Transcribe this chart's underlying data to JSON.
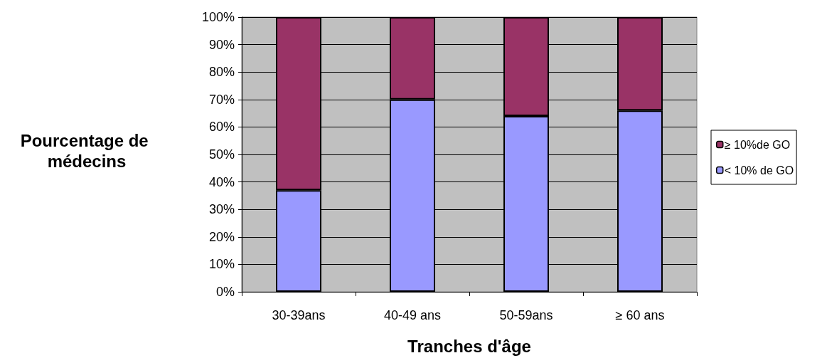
{
  "chart_data": {
    "type": "bar",
    "stacked": true,
    "categories": [
      "30-39ans",
      "40-49 ans",
      "50-59ans",
      "≥ 60 ans"
    ],
    "series": [
      {
        "name": "< 10% de GO",
        "color": "#9999ff",
        "values": [
          37,
          70,
          64,
          66
        ]
      },
      {
        "name": "≥ 10%de GO",
        "color": "#993366",
        "values": [
          63,
          30,
          36,
          34
        ]
      }
    ],
    "xlabel": "Tranches d'âge",
    "ylabel": "Pourcentage de médecins",
    "ylim": [
      0,
      100
    ],
    "yticks": [
      {
        "value": 0,
        "label": "0%"
      },
      {
        "value": 10,
        "label": "10%"
      },
      {
        "value": 20,
        "label": "20%"
      },
      {
        "value": 30,
        "label": "30%"
      },
      {
        "value": 40,
        "label": "40%"
      },
      {
        "value": 50,
        "label": "50%"
      },
      {
        "value": 60,
        "label": "60%"
      },
      {
        "value": 70,
        "label": "70%"
      },
      {
        "value": 80,
        "label": "80%"
      },
      {
        "value": 90,
        "label": "90%"
      },
      {
        "value": 100,
        "label": "100%"
      }
    ],
    "grid": "y",
    "legend": "right"
  }
}
